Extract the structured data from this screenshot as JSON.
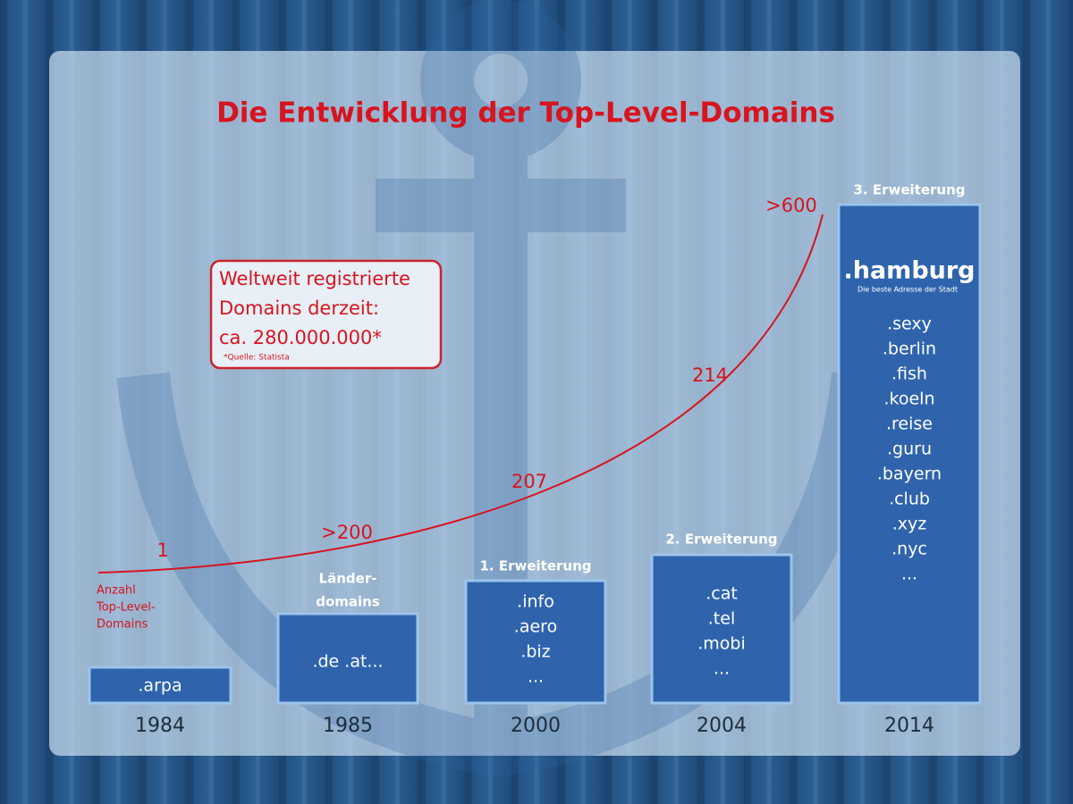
{
  "title": "Die Entwicklung der Top-Level-Domains",
  "callout": {
    "lines": [
      "Weltweit registrierte",
      "Domains derzeit:",
      "ca. 280.000.000*"
    ],
    "source": "*Quelle: Statista"
  },
  "curve": {
    "axis_label": [
      "Anzahl",
      "Top-Level-",
      "Domains"
    ],
    "counts": [
      "1",
      ">200",
      "207",
      "214",
      ">600"
    ]
  },
  "columns": [
    {
      "year": "1984",
      "items": [
        ".arpa"
      ]
    },
    {
      "year": "1985",
      "heading": [
        "Länder-",
        "domains"
      ],
      "items": [
        ".de .at..."
      ]
    },
    {
      "year": "2000",
      "heading": [
        "1. Erweiterung"
      ],
      "items": [
        ".info",
        ".aero",
        ".biz",
        "..."
      ]
    },
    {
      "year": "2004",
      "heading": [
        "2. Erweiterung"
      ],
      "items": [
        ".cat",
        ".tel",
        ".mobi",
        "..."
      ]
    },
    {
      "year": "2014",
      "heading": [
        "3. Erweiterung"
      ],
      "logo": {
        "name": ".hamburg",
        "tagline": "Die beste Adresse der Stadt"
      },
      "items": [
        ".sexy",
        ".berlin",
        ".fish",
        ".koeln",
        ".reise",
        ".guru",
        ".bayern",
        ".club",
        ".xyz",
        ".nyc",
        "..."
      ]
    }
  ]
}
